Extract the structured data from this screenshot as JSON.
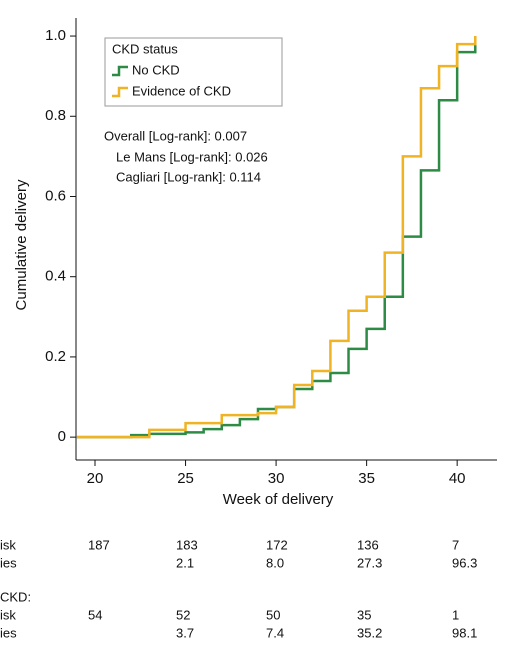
{
  "chart_data": {
    "type": "step",
    "x_label": "Week of delivery",
    "y_label": "Cumulative delivery",
    "legend_title": "CKD status",
    "x": [
      19,
      22,
      23,
      25,
      26,
      27,
      28,
      29,
      30,
      31,
      32,
      33,
      34,
      35,
      36,
      37,
      38,
      39,
      40,
      41
    ],
    "series": [
      {
        "name": "No CKD",
        "color": "#2e8b45",
        "values": [
          0,
          0.005,
          0.008,
          0.012,
          0.02,
          0.03,
          0.045,
          0.07,
          0.075,
          0.12,
          0.14,
          0.16,
          0.22,
          0.27,
          0.35,
          0.5,
          0.665,
          0.84,
          0.96,
          1.0
        ]
      },
      {
        "name": "Evidence of CKD",
        "color": "#f0b323",
        "values": [
          0,
          0,
          0.018,
          0.035,
          0.035,
          0.055,
          0.055,
          0.06,
          0.075,
          0.13,
          0.165,
          0.24,
          0.315,
          0.35,
          0.46,
          0.7,
          0.87,
          0.925,
          0.98,
          1.0
        ]
      }
    ],
    "annotations": [
      "Overall [Log-rank]: 0.007",
      "Le Mans [Log-rank]: 0.026",
      "Cagliari [Log-rank]: 0.114"
    ],
    "xlim": [
      18.95,
      42.2
    ],
    "ylim": [
      -0.057,
      1.045
    ],
    "xticks": [
      20,
      25,
      30,
      35,
      40
    ],
    "yticks": [
      0,
      0.2,
      0.4,
      0.6,
      0.8,
      {
        "value": 1,
        "label": "1.0"
      }
    ]
  },
  "risk_table": {
    "rows": [
      {
        "label": "isk",
        "cells": [
          "187",
          "183",
          "172",
          "136",
          "7"
        ]
      },
      {
        "label": "ies",
        "cells": [
          null,
          "2.1",
          "8.0",
          "27.3",
          "96.3"
        ]
      },
      {
        "label": "CKD:"
      },
      {
        "label": "isk",
        "cells": [
          "54",
          "52",
          "50",
          "35",
          "1"
        ]
      },
      {
        "label": "ies",
        "cells": [
          null,
          "3.7",
          "7.4",
          "35.2",
          "98.1"
        ]
      }
    ]
  }
}
